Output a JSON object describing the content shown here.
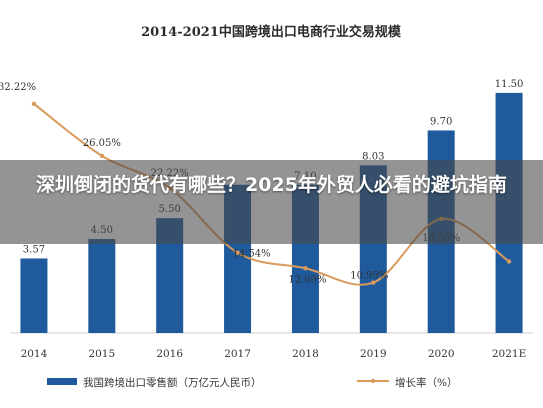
{
  "overlay": {
    "headline": "深圳倒闭的货代有哪些？2025年外贸人必看的避坑指南"
  },
  "colors": {
    "bar": "#1f5b9c",
    "line": "#d99a5b",
    "axis": "#cfcfcf",
    "text": "#333333"
  },
  "chart_data": {
    "type": "bar",
    "title": "2014-2021中国跨境出口电商行业交易规模",
    "categories": [
      "2014",
      "2015",
      "2016",
      "2017",
      "2018",
      "2019",
      "2020",
      "2021E"
    ],
    "ylim": [
      0,
      12.5
    ],
    "y2lim": [
      5,
      36
    ],
    "grid": false,
    "legend_position": "bottom",
    "series": [
      {
        "name": "我国跨境出口零售额（万亿元人民币）",
        "kind": "bar",
        "axis": "left",
        "values": [
          3.57,
          4.5,
          5.5,
          7.1,
          7.1,
          8.03,
          9.7,
          11.5
        ],
        "labels": [
          "3.57",
          "4.50",
          "5.50",
          "",
          "7.10",
          "8.03",
          "9.70",
          "11.50"
        ]
      },
      {
        "name": "增长率（%）",
        "kind": "line",
        "axis": "right",
        "values": [
          32.22,
          26.05,
          22.22,
          14.54,
          12.69,
          10.99,
          18.55,
          13.5
        ],
        "labels": [
          "32.22%",
          "26.05%",
          "22.22%",
          "14.54%",
          "12.69%",
          "10.99%",
          "18.55%",
          ""
        ]
      }
    ]
  }
}
